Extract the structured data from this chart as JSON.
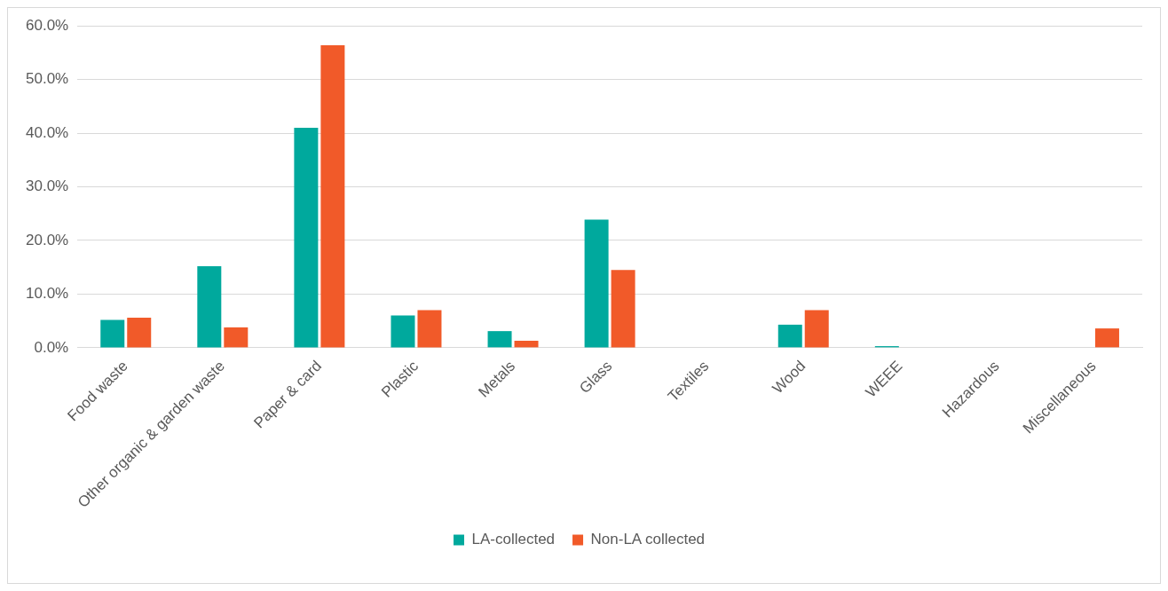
{
  "chart_data": {
    "type": "bar",
    "categories": [
      "Food waste",
      "Other organic & garden waste",
      "Paper & card",
      "Plastic",
      "Metals",
      "Glass",
      "Textiles",
      "Wood",
      "WEEE",
      "Hazardous",
      "Miscellaneous"
    ],
    "series": [
      {
        "name": "LA-collected",
        "color": "#00a99d",
        "values": [
          5.2,
          15.2,
          41.0,
          6.0,
          3.1,
          23.9,
          0,
          4.3,
          0.3,
          0,
          0
        ]
      },
      {
        "name": "Non-LA collected",
        "color": "#f15a29",
        "values": [
          5.6,
          3.8,
          56.4,
          7.0,
          1.3,
          14.5,
          0,
          7.0,
          0,
          0,
          3.6
        ]
      }
    ],
    "ylim": [
      0,
      60
    ],
    "yticks": [
      {
        "value": 0,
        "label": "0.0%"
      },
      {
        "value": 10,
        "label": "10.0%"
      },
      {
        "value": 20,
        "label": "20.0%"
      },
      {
        "value": 30,
        "label": "30.0%"
      },
      {
        "value": 40,
        "label": "40.0%"
      },
      {
        "value": 50,
        "label": "50.0%"
      },
      {
        "value": 60,
        "label": "60.0%"
      }
    ],
    "grid": "y",
    "legend": "bottom"
  }
}
